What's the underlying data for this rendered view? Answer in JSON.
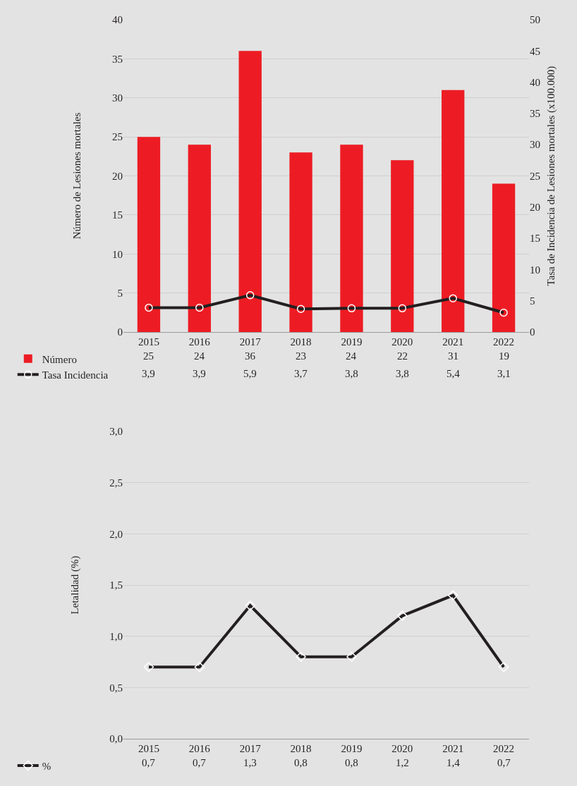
{
  "chart_data": [
    {
      "type": "bar",
      "ylabel": "Número de Lesiones mortales",
      "y2label": "Tasa de Incidencia de Lesiones mortales (x100.000)",
      "categories": [
        "2015",
        "2016",
        "2017",
        "2018",
        "2019",
        "2020",
        "2021",
        "2022"
      ],
      "series": [
        {
          "name": "Número",
          "color": "#ed1c24",
          "values": [
            25,
            24,
            36,
            23,
            24,
            22,
            31,
            19
          ],
          "value_labels": [
            "25",
            "24",
            "36",
            "23",
            "24",
            "22",
            "31",
            "19"
          ]
        },
        {
          "name": "Tasa Incidencia",
          "type": "line",
          "axis": "y2",
          "color": "#231f20",
          "marker": "circle",
          "values": [
            3.9,
            3.9,
            5.9,
            3.7,
            3.8,
            3.8,
            5.4,
            3.1
          ],
          "value_labels": [
            "3,9",
            "3,9",
            "5,9",
            "3,7",
            "3,8",
            "3,8",
            "5,4",
            "3,1"
          ]
        }
      ],
      "ylim": [
        0,
        40
      ],
      "yticks": [
        0,
        5,
        10,
        15,
        20,
        25,
        30,
        35,
        40
      ],
      "y2lim": [
        0,
        50
      ],
      "y2ticks": [
        0,
        5,
        10,
        15,
        20,
        25,
        30,
        35,
        40,
        45,
        50
      ],
      "grid": "y",
      "legend": "bottom left"
    },
    {
      "type": "line",
      "ylabel": "Letalidad (%)",
      "categories": [
        "2015",
        "2016",
        "2017",
        "2018",
        "2019",
        "2020",
        "2021",
        "2022"
      ],
      "series": [
        {
          "name": "%",
          "color": "#231f20",
          "marker": "diamond",
          "values": [
            0.7,
            0.7,
            1.3,
            0.8,
            0.8,
            1.2,
            1.4,
            0.7
          ],
          "value_labels": [
            "0,7",
            "0,7",
            "1,3",
            "0,8",
            "0,8",
            "1,2",
            "1,4",
            "0,7"
          ]
        }
      ],
      "ylim": [
        0,
        3
      ],
      "yticks": [
        {
          "value": 0,
          "label": "0,0"
        },
        {
          "value": 0.5,
          "label": "0,5"
        },
        {
          "value": 1,
          "label": "1,0"
        },
        {
          "value": 1.5,
          "label": "1,5"
        },
        {
          "value": 2,
          "label": "2,0"
        },
        {
          "value": 2.5,
          "label": "2,5"
        },
        {
          "value": 3,
          "label": "3,0"
        }
      ],
      "grid": "y",
      "legend": "bottom left"
    }
  ]
}
